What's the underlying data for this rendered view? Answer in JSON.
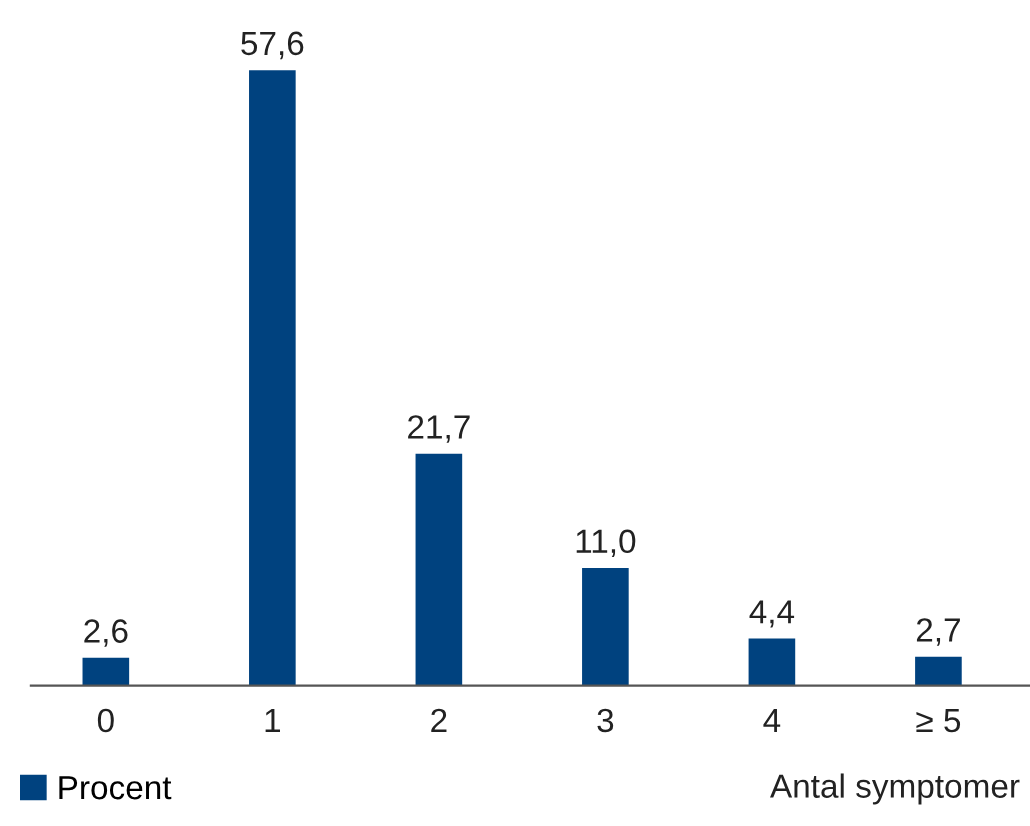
{
  "chart_data": {
    "type": "bar",
    "categories": [
      "0",
      "1",
      "2",
      "3",
      "4",
      "≥ 5"
    ],
    "series": [
      {
        "name": "Procent",
        "color": "#00427f",
        "values": [
          2.6,
          57.6,
          21.7,
          11.0,
          4.4,
          2.7
        ],
        "value_labels": [
          "2,6",
          "57,6",
          "21,7",
          "11,0",
          "4,4",
          "2,7"
        ]
      }
    ],
    "xlabel": "Antal symptomer",
    "legend": "bottom left"
  }
}
